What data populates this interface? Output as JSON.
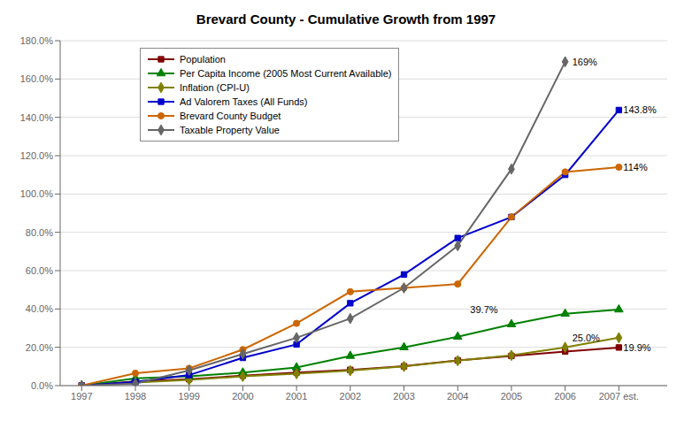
{
  "chart_data": {
    "type": "line",
    "title": "Brevard County - Cumulative Growth from 1997",
    "x": [
      1997,
      1998,
      1999,
      2000,
      2001,
      2002,
      2003,
      2004,
      2005,
      2006,
      2007
    ],
    "xlim": [
      1996.6,
      2007.9
    ],
    "xticks": [
      1997,
      1998,
      1999,
      2000,
      2001,
      2002,
      2003,
      2004,
      2005,
      2006,
      {
        "value": 2007,
        "label": "2007 est."
      }
    ],
    "ylim": [
      0.0,
      1.8
    ],
    "yticks": [
      {
        "value": 0.0,
        "label": "0.0%"
      },
      {
        "value": 0.2,
        "label": "20.0%"
      },
      {
        "value": 0.4,
        "label": "40.0%"
      },
      {
        "value": 0.6,
        "label": "60.0%"
      },
      {
        "value": 0.8,
        "label": "80.0%"
      },
      {
        "value": 1.0,
        "label": "100.0%"
      },
      {
        "value": 1.2,
        "label": "120.0%"
      },
      {
        "value": 1.4,
        "label": "140.0%"
      },
      {
        "value": 1.6,
        "label": "160.0%"
      },
      {
        "value": 1.8,
        "label": "180.0%"
      }
    ],
    "grid": true,
    "legend": "upper left",
    "series": [
      {
        "name": "Population",
        "color": "#800000",
        "marker": "square",
        "values": [
          0.0,
          0.022,
          0.034,
          0.052,
          0.068,
          0.082,
          0.101,
          0.132,
          0.155,
          0.178,
          0.199
        ]
      },
      {
        "name": "Per Capita Income (2005 Most Current Available)",
        "color": "#008000",
        "marker": "triangle",
        "values": [
          0.0,
          0.038,
          0.048,
          0.068,
          0.095,
          0.155,
          0.2,
          0.255,
          0.32,
          0.375,
          0.397
        ]
      },
      {
        "name": "Inflation (CPI-U)",
        "color": "#808000",
        "marker": "diamond",
        "values": [
          0.0,
          0.016,
          0.03,
          0.048,
          0.062,
          0.078,
          0.1,
          0.13,
          0.158,
          0.2,
          0.25
        ]
      },
      {
        "name": "Ad Valorem Taxes (All Funds)",
        "color": "#0000cc",
        "marker": "square",
        "values": [
          0.0,
          0.02,
          0.055,
          0.145,
          0.215,
          0.43,
          0.58,
          0.77,
          0.88,
          1.1,
          1.438
        ]
      },
      {
        "name": "Brevard County Budget",
        "color": "#cc6600",
        "marker": "circle",
        "values": [
          0.0,
          0.065,
          0.09,
          0.188,
          0.325,
          0.49,
          0.51,
          0.53,
          0.88,
          1.115,
          1.14
        ]
      },
      {
        "name": "Taxable Property Value",
        "color": "#666666",
        "marker": "diamond",
        "values": [
          0.0,
          0.01,
          0.08,
          0.165,
          0.25,
          0.35,
          0.51,
          0.73,
          1.13,
          1.69,
          null
        ]
      }
    ],
    "annotations": [
      {
        "text": "19.9%",
        "x": 2007,
        "y": 0.199
      },
      {
        "text": "39.7%",
        "x": 2004.15,
        "y": 0.397
      },
      {
        "text": "25.0%",
        "x": 2006.05,
        "y": 0.25
      },
      {
        "text": "143.8%",
        "x": 2007,
        "y": 1.438
      },
      {
        "text": "114%",
        "x": 2007,
        "y": 1.14
      },
      {
        "text": "169%",
        "x": 2006.05,
        "y": 1.69
      }
    ]
  }
}
